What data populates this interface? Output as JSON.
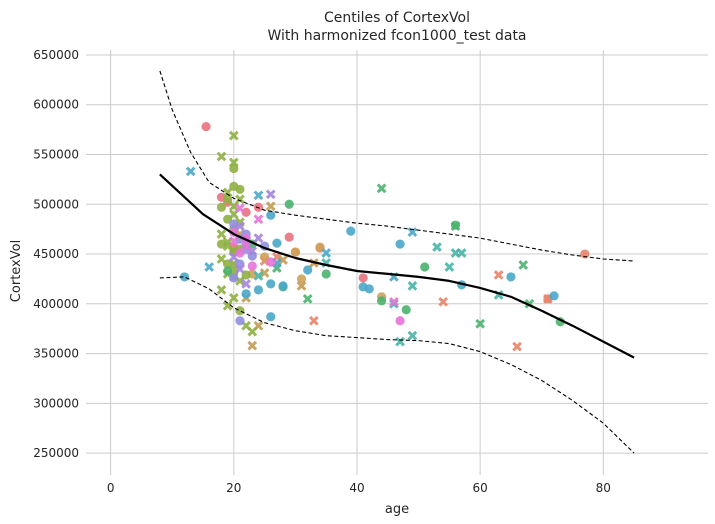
{
  "chart_data": {
    "type": "scatter",
    "title": "Centiles of CortexVol",
    "subtitle": "With harmonized fcon1000_test data",
    "xlabel": "age",
    "ylabel": "CortexVol",
    "xlim": [
      -4,
      97
    ],
    "ylim": [
      228000,
      655000
    ],
    "x_ticks": [
      0,
      20,
      40,
      60,
      80
    ],
    "y_ticks": [
      250000,
      300000,
      350000,
      400000,
      450000,
      500000,
      550000,
      600000,
      650000
    ],
    "grid": true,
    "legend": "none",
    "lines": [
      {
        "style": "solid",
        "color": "#000000",
        "x": [
          8,
          15,
          20,
          25,
          30,
          35,
          40,
          45,
          50,
          55,
          60,
          65,
          70,
          75,
          80,
          85
        ],
        "y": [
          530000,
          490000,
          470000,
          456000,
          446000,
          439000,
          433000,
          430000,
          427000,
          423000,
          416000,
          407000,
          393000,
          378000,
          362000,
          346000
        ]
      },
      {
        "style": "dashed",
        "color": "#000000",
        "x": [
          8,
          10,
          13,
          16,
          20,
          25,
          30,
          35,
          40,
          45,
          50,
          55,
          60,
          65,
          70,
          75,
          80,
          85
        ],
        "y": [
          634000,
          595000,
          552000,
          522000,
          506000,
          494000,
          489000,
          485000,
          481000,
          478000,
          474000,
          470000,
          466000,
          460000,
          454000,
          449000,
          445000,
          443000
        ]
      },
      {
        "style": "dashed",
        "color": "#000000",
        "x": [
          8,
          12,
          16,
          20,
          25,
          30,
          35,
          40,
          45,
          50,
          55,
          60,
          65,
          70,
          75,
          80,
          85
        ],
        "y": [
          426000,
          427000,
          415000,
          396000,
          381000,
          373000,
          368000,
          366000,
          364000,
          363000,
          360000,
          352000,
          339000,
          323000,
          303000,
          280000,
          250000
        ]
      }
    ],
    "series": [
      {
        "color": "#e8727f",
        "marker": "circle",
        "points": [
          [
            15.5,
            578000
          ],
          [
            18,
            507000
          ],
          [
            20,
            456000
          ],
          [
            24,
            497000
          ],
          [
            29,
            467000
          ],
          [
            41,
            426000
          ],
          [
            22,
            492000
          ],
          [
            19,
            502000
          ]
        ]
      },
      {
        "color": "#e8846a",
        "marker": "x",
        "points": [
          [
            54,
            402000
          ],
          [
            63,
            429000
          ],
          [
            66,
            357000
          ],
          [
            71,
            405000
          ],
          [
            25,
            443000
          ],
          [
            27,
            447000
          ],
          [
            33,
            383000
          ]
        ]
      },
      {
        "color": "#e8846a",
        "marker": "circle",
        "points": [
          [
            77,
            450000
          ],
          [
            71,
            405000
          ],
          [
            30,
            452000
          ],
          [
            34,
            456000
          ]
        ]
      },
      {
        "color": "#cfa15a",
        "marker": "circle",
        "points": [
          [
            30,
            452000
          ],
          [
            34,
            457000
          ],
          [
            44,
            407000
          ],
          [
            31,
            425000
          ],
          [
            25,
            447000
          ],
          [
            23,
            430000
          ]
        ]
      },
      {
        "color": "#c29b55",
        "marker": "x",
        "points": [
          [
            23,
            358000
          ],
          [
            25,
            431000
          ],
          [
            22,
            406000
          ],
          [
            26,
            498000
          ],
          [
            28,
            444000
          ],
          [
            33,
            441000
          ],
          [
            31,
            418000
          ],
          [
            21,
            470000
          ],
          [
            24,
            378000
          ]
        ]
      },
      {
        "color": "#8fb043",
        "marker": "x",
        "points": [
          [
            20,
            569000
          ],
          [
            18,
            548000
          ],
          [
            20,
            542000
          ],
          [
            19,
            512000
          ],
          [
            20,
            498000
          ],
          [
            21,
            482000
          ],
          [
            18,
            470000
          ],
          [
            19,
            462000
          ],
          [
            20,
            453000
          ],
          [
            18,
            445000
          ],
          [
            20,
            440000
          ],
          [
            19,
            430000
          ],
          [
            21,
            423000
          ],
          [
            18,
            414000
          ],
          [
            20,
            406000
          ],
          [
            19,
            398000
          ],
          [
            22,
            378000
          ],
          [
            23,
            372000
          ],
          [
            20,
            490000
          ],
          [
            21,
            505000
          ],
          [
            19,
            458000
          ],
          [
            20,
            427000
          ]
        ]
      },
      {
        "color": "#8fb043",
        "marker": "circle",
        "points": [
          [
            20,
            536000
          ],
          [
            20,
            518000
          ],
          [
            21,
            515000
          ],
          [
            18,
            497000
          ],
          [
            19,
            485000
          ],
          [
            20,
            475000
          ],
          [
            18,
            460000
          ],
          [
            21,
            455000
          ],
          [
            19,
            440000
          ],
          [
            20,
            433000
          ],
          [
            22,
            429000
          ],
          [
            21,
            393000
          ],
          [
            19,
            505000
          ],
          [
            20,
            452000
          ]
        ]
      },
      {
        "color": "#4cb36e",
        "marker": "circle",
        "points": [
          [
            29,
            500000
          ],
          [
            23,
            460000
          ],
          [
            35,
            430000
          ],
          [
            44,
            403000
          ],
          [
            48,
            394000
          ],
          [
            51,
            437000
          ],
          [
            56,
            479000
          ],
          [
            73,
            382000
          ],
          [
            28,
            417000
          ],
          [
            19,
            433000
          ]
        ]
      },
      {
        "color": "#4cb36e",
        "marker": "x",
        "points": [
          [
            44,
            516000
          ],
          [
            56,
            478000
          ],
          [
            60,
            380000
          ],
          [
            67,
            439000
          ],
          [
            68,
            400000
          ],
          [
            27,
            436000
          ],
          [
            32,
            405000
          ]
        ]
      },
      {
        "color": "#48b5a7",
        "marker": "x",
        "points": [
          [
            35,
            441000
          ],
          [
            46,
            400000
          ],
          [
            47,
            362000
          ],
          [
            49,
            418000
          ],
          [
            49,
            368000
          ],
          [
            53,
            457000
          ],
          [
            55,
            437000
          ],
          [
            56,
            451000
          ],
          [
            57,
            451000
          ],
          [
            63,
            409000
          ],
          [
            24,
            428000
          ]
        ]
      },
      {
        "color": "#4aa7c9",
        "marker": "circle",
        "points": [
          [
            12,
            427000
          ],
          [
            22,
            410000
          ],
          [
            24,
            414000
          ],
          [
            26,
            420000
          ],
          [
            26,
            387000
          ],
          [
            27,
            461000
          ],
          [
            28,
            418000
          ],
          [
            32,
            434000
          ],
          [
            39,
            473000
          ],
          [
            41,
            417000
          ],
          [
            42,
            415000
          ],
          [
            47,
            460000
          ],
          [
            57,
            419000
          ],
          [
            65,
            427000
          ],
          [
            72,
            408000
          ],
          [
            26,
            489000
          ]
        ]
      },
      {
        "color": "#4aa7c9",
        "marker": "x",
        "points": [
          [
            13,
            533000
          ],
          [
            16,
            437000
          ],
          [
            24,
            509000
          ],
          [
            27,
            441000
          ],
          [
            35,
            451000
          ],
          [
            46,
            427000
          ],
          [
            49,
            472000
          ]
        ]
      },
      {
        "color": "#8f8fe0",
        "marker": "circle",
        "points": [
          [
            20,
            480000
          ],
          [
            21,
            465000
          ],
          [
            22,
            455000
          ],
          [
            21,
            440000
          ],
          [
            23,
            448000
          ],
          [
            20,
            426000
          ],
          [
            22,
            470000
          ],
          [
            25,
            458000
          ],
          [
            21,
            383000
          ]
        ]
      },
      {
        "color": "#a584e0",
        "marker": "x",
        "points": [
          [
            21,
            478000
          ],
          [
            22,
            462000
          ],
          [
            20,
            447000
          ],
          [
            23,
            453000
          ],
          [
            21,
            435000
          ],
          [
            22,
            420000
          ],
          [
            26,
            510000
          ],
          [
            24,
            466000
          ]
        ]
      },
      {
        "color": "#e773d8",
        "marker": "circle",
        "points": [
          [
            20,
            472000
          ],
          [
            21,
            451000
          ],
          [
            23,
            438000
          ],
          [
            22,
            466000
          ],
          [
            47,
            383000
          ],
          [
            26,
            442000
          ]
        ]
      },
      {
        "color": "#e773d8",
        "marker": "x",
        "points": [
          [
            46,
            402000
          ],
          [
            21,
            496000
          ],
          [
            22,
            458000
          ],
          [
            24,
            485000
          ],
          [
            20,
            463000
          ]
        ]
      }
    ]
  }
}
